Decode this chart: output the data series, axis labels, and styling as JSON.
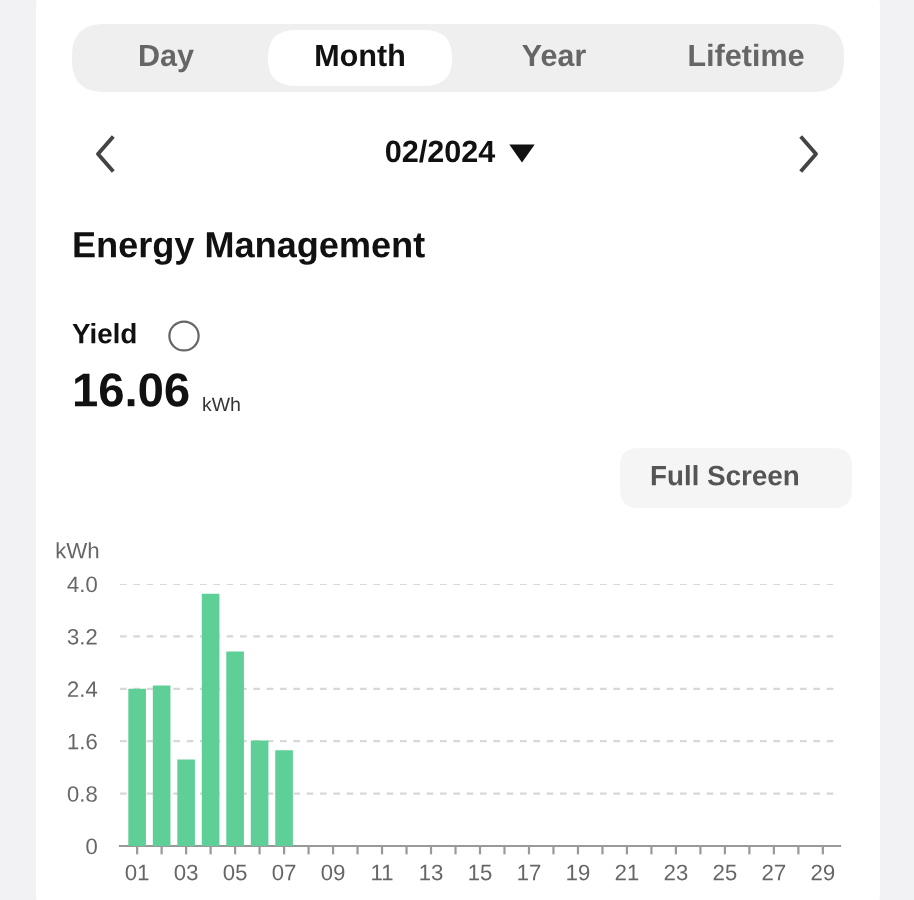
{
  "chart_data": {
    "type": "bar",
    "title": "Energy Management",
    "ylabel": "kWh",
    "annotations": [
      "Day",
      "Month",
      "Year",
      "Lifetime",
      "02/2024",
      "Yield",
      "16.06",
      "kWh",
      "Full Screen"
    ],
    "categories": [
      "01",
      null,
      "03",
      null,
      "05",
      null,
      "07",
      null,
      "09",
      null,
      "11",
      null,
      "13",
      null,
      "15",
      null,
      "17",
      null,
      "19",
      null,
      "21",
      null,
      "23",
      null,
      "25",
      null,
      "27",
      null,
      "29"
    ],
    "values": [
      2.4,
      2.45,
      1.32,
      3.85,
      2.97,
      1.61,
      1.46,
      null,
      null,
      null,
      null,
      null,
      null,
      null,
      null,
      null,
      null,
      null,
      null,
      null,
      null,
      null,
      null,
      null,
      null,
      null,
      null,
      null,
      null
    ],
    "color": "#5fcf98",
    "ylim": [
      0,
      4.0
    ],
    "yticks": [
      0,
      0.8,
      1.6,
      2.4,
      3.2,
      {
        "value": 4,
        "label": "4.0"
      }
    ],
    "grid": "y"
  }
}
